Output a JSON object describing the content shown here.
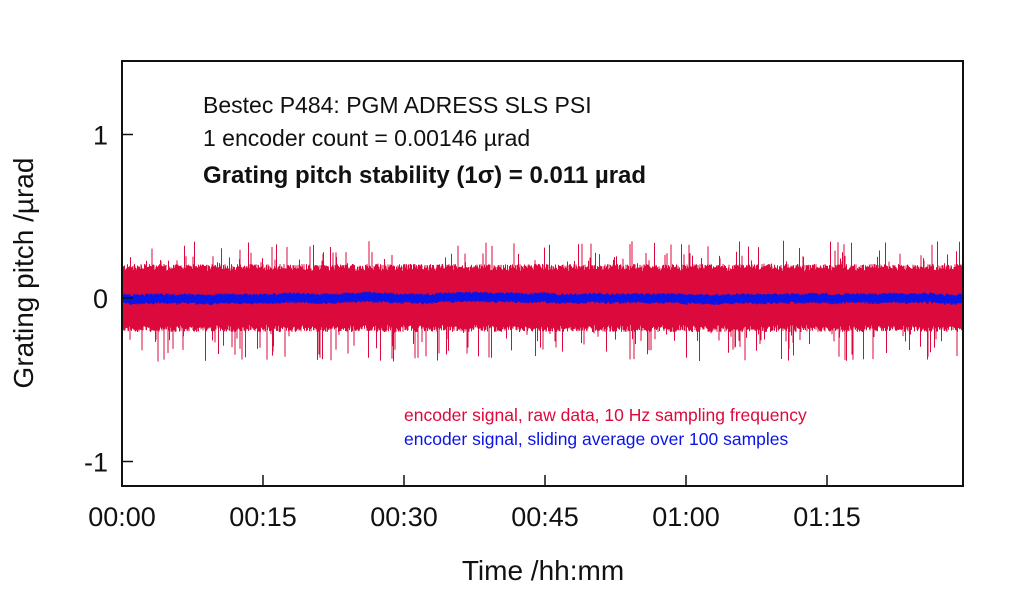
{
  "chart_data": {
    "type": "line",
    "title": "",
    "annotations": [
      "Bestec P484: PGM ADRESS SLS PSI",
      "1 encoder count = 0.00146 µrad",
      "Grating pitch stability (1σ) = 0.011 µrad"
    ],
    "xlabel": "Time /hh:mm",
    "ylabel": "Grating pitch /µrad",
    "x_unit": "minutes",
    "xlim": [
      0,
      89.5
    ],
    "ylim": [
      -1.15,
      1.45
    ],
    "x_ticks": [
      0,
      15,
      30,
      45,
      60,
      75
    ],
    "x_tick_labels": [
      "00:00",
      "00:15",
      "00:30",
      "00:45",
      "01:00",
      "01:15"
    ],
    "y_ticks": [
      1,
      0,
      -1
    ],
    "y_tick_labels": [
      "1",
      "0",
      "-1"
    ],
    "grid": false,
    "legend_position": "bottom-right",
    "series": [
      {
        "name": "encoder signal, raw data, 10 Hz sampling frequency",
        "color": "#dc0a3c",
        "mean": 0.0,
        "typical_envelope": 0.2,
        "max_excursion": [
          -0.42,
          0.37
        ]
      },
      {
        "name": "encoder signal, sliding average over 100 samples",
        "color": "#0a14e6",
        "mean": 0.0,
        "typical_envelope": 0.03
      }
    ]
  }
}
